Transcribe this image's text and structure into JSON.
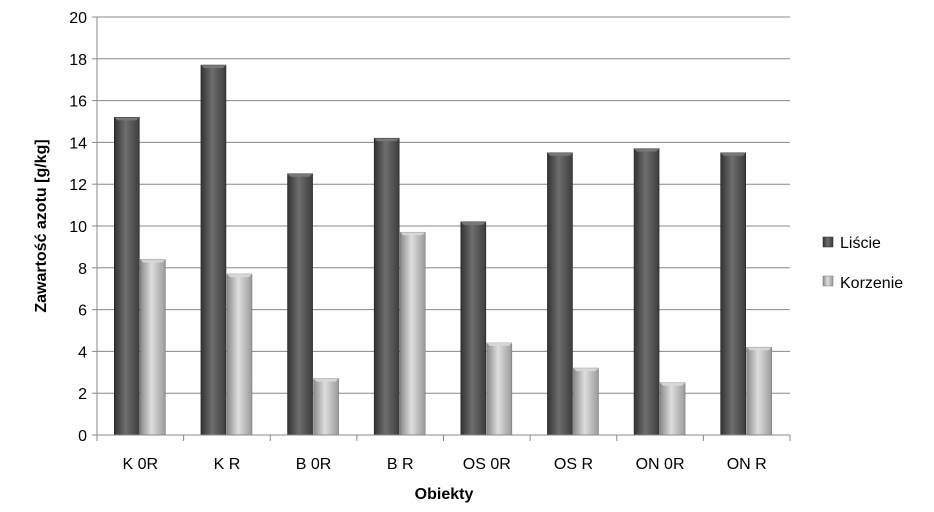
{
  "chart_data": {
    "type": "bar",
    "title": "",
    "xlabel": "Obiekty",
    "ylabel": "Zawartość azotu [g/kg]",
    "ylim": [
      0,
      20
    ],
    "yticks": [
      "0",
      "2",
      "4",
      "6",
      "8",
      "10",
      "12",
      "14",
      "16",
      "18",
      "20"
    ],
    "categories": [
      "K 0R",
      "K R",
      "B 0R",
      "B R",
      "OS 0R",
      "OS R",
      "ON 0R",
      "ON R"
    ],
    "series": [
      {
        "name": "Liście",
        "values": [
          15.2,
          17.7,
          12.5,
          14.2,
          10.2,
          13.5,
          13.7,
          13.5
        ]
      },
      {
        "name": "Korzenie",
        "values": [
          8.4,
          7.7,
          2.7,
          9.7,
          4.4,
          3.2,
          2.5,
          4.2
        ]
      }
    ],
    "grid": true,
    "legend_position": "right",
    "colors": {
      "Liście": {
        "dark": "#3a3a3a",
        "mid": "#6b6b6b",
        "light": "#8e8e8e"
      },
      "Korzenie": {
        "dark": "#8d8d8d",
        "mid": "#c4c4c4",
        "light": "#e0e0e0"
      },
      "gridline": "#888888"
    }
  }
}
